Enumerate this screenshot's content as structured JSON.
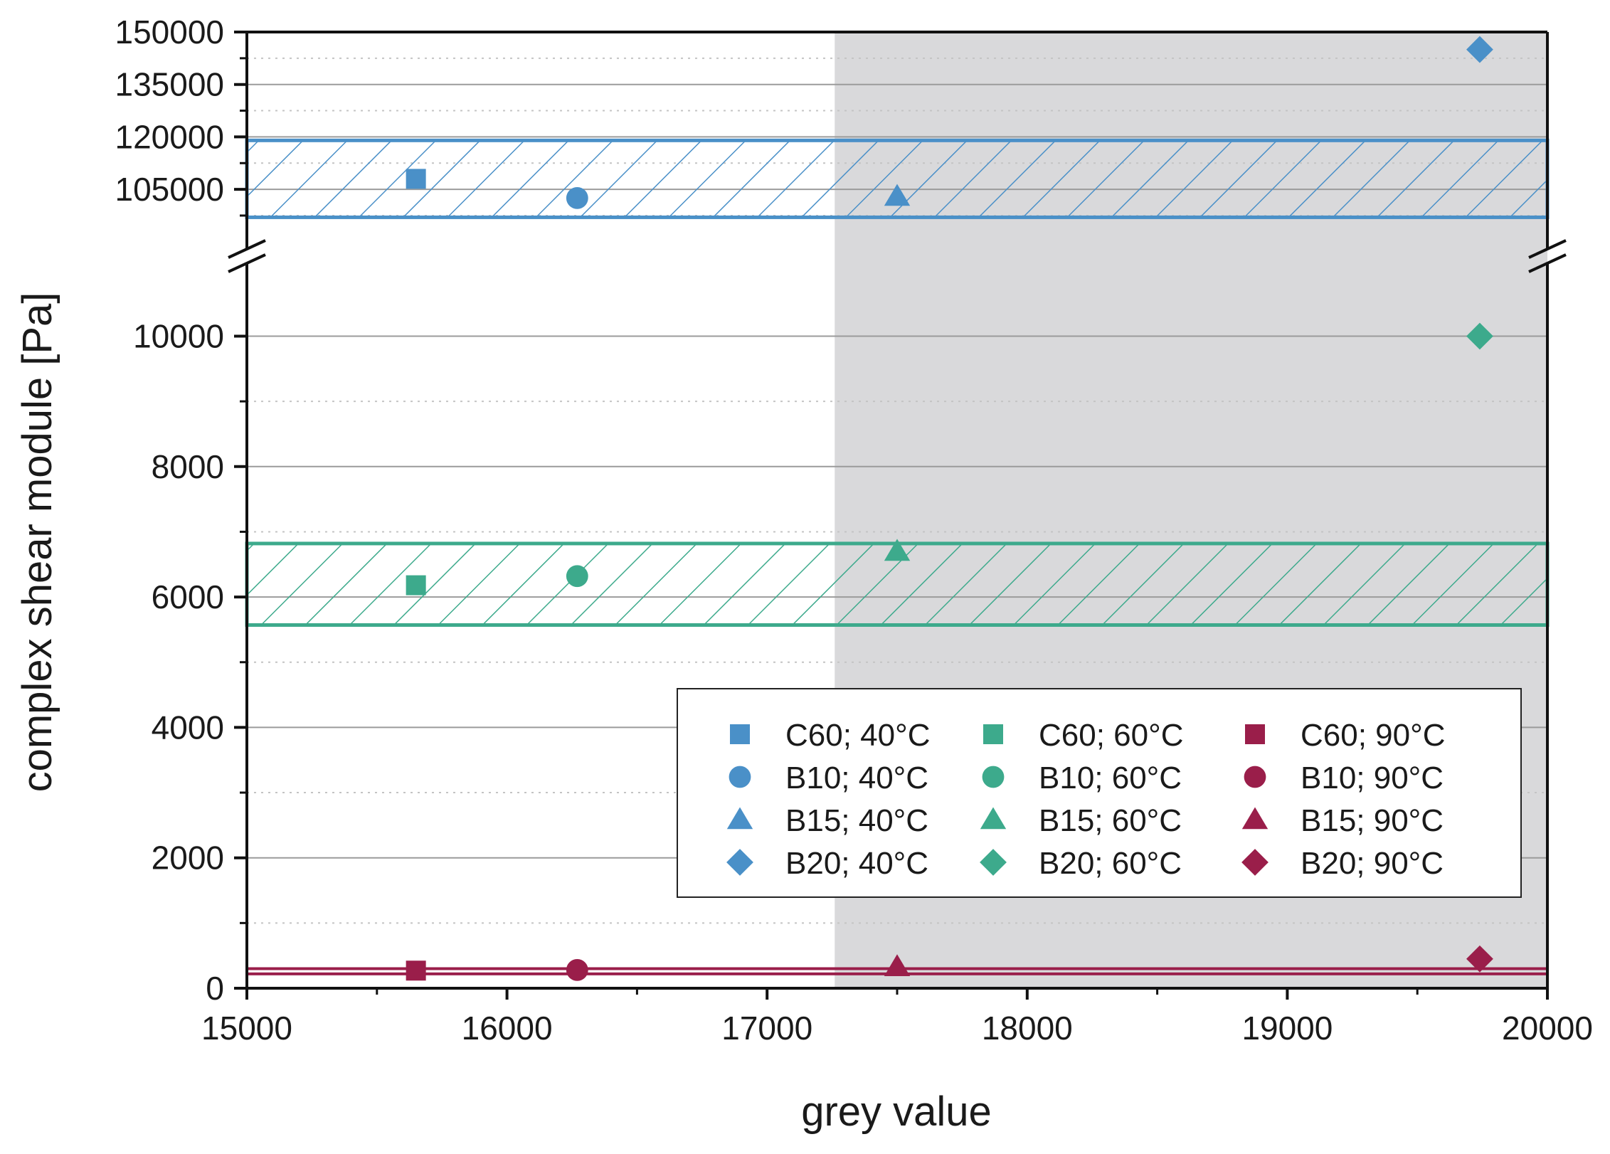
{
  "chart_data": {
    "type": "scatter",
    "title": "",
    "xlabel": "grey value",
    "ylabel": "complex shear module [Pa]",
    "xlim": [
      15000,
      20000
    ],
    "x_ticks": [
      15000,
      16000,
      17000,
      18000,
      19000,
      20000
    ],
    "x_tick_labels": [
      "15000",
      "16000",
      "17000",
      "18000",
      "19000",
      "20000"
    ],
    "y_axis_break": true,
    "y_lower_range": [
      0,
      10900
    ],
    "y_upper_range": [
      92000,
      150000
    ],
    "y_ticks_lower": [
      0,
      2000,
      4000,
      6000,
      8000,
      10000
    ],
    "y_tick_labels_lower": [
      "0",
      "2000",
      "4000",
      "6000",
      "8000",
      "10000"
    ],
    "y_ticks_upper": [
      105000,
      120000,
      135000,
      150000
    ],
    "y_tick_labels_upper": [
      "105000",
      "120000",
      "135000",
      "150000"
    ],
    "grid": true,
    "shaded_region": {
      "x_from": 17260,
      "x_to": 20000,
      "color": "#d9d9db"
    },
    "colors": {
      "c40": "#4a90c8",
      "c60": "#3daa8c",
      "c90": "#9a1e4a"
    },
    "bands": [
      {
        "name": "40°C band",
        "y_min": 97000,
        "y_max": 119000,
        "color": "#4a90c8",
        "hatched": true
      },
      {
        "name": "60°C band",
        "y_min": 5570,
        "y_max": 6820,
        "color": "#3daa8c",
        "hatched": true
      },
      {
        "name": "90°C band",
        "y_min": 220,
        "y_max": 300,
        "color": "#9a1e4a",
        "hatched": false
      }
    ],
    "series": [
      {
        "name": "C60; 40°C",
        "marker": "square",
        "color": "#4a90c8",
        "x": 15650,
        "y": 108000
      },
      {
        "name": "B10; 40°C",
        "marker": "circle",
        "color": "#4a90c8",
        "x": 16270,
        "y": 102500
      },
      {
        "name": "B15; 40°C",
        "marker": "triangle",
        "color": "#4a90c8",
        "x": 17500,
        "y": 103000
      },
      {
        "name": "B20; 40°C",
        "marker": "diamond",
        "color": "#4a90c8",
        "x": 19740,
        "y": 145000
      },
      {
        "name": "C60; 60°C",
        "marker": "square",
        "color": "#3daa8c",
        "x": 15650,
        "y": 6180
      },
      {
        "name": "B10; 60°C",
        "marker": "circle",
        "color": "#3daa8c",
        "x": 16270,
        "y": 6320
      },
      {
        "name": "B15; 60°C",
        "marker": "triangle",
        "color": "#3daa8c",
        "x": 17500,
        "y": 6700
      },
      {
        "name": "B20; 60°C",
        "marker": "diamond",
        "color": "#3daa8c",
        "x": 19740,
        "y": 10000
      },
      {
        "name": "C60; 90°C",
        "marker": "square",
        "color": "#9a1e4a",
        "x": 15650,
        "y": 270
      },
      {
        "name": "B10; 90°C",
        "marker": "circle",
        "color": "#9a1e4a",
        "x": 16270,
        "y": 280
      },
      {
        "name": "B15; 90°C",
        "marker": "triangle",
        "color": "#9a1e4a",
        "x": 17500,
        "y": 330
      },
      {
        "name": "B20; 90°C",
        "marker": "diamond",
        "color": "#9a1e4a",
        "x": 19740,
        "y": 450
      }
    ],
    "legend": {
      "position": "lower-right",
      "columns": [
        [
          "C60; 40°C",
          "B10; 40°C",
          "B15; 40°C",
          "B20; 40°C"
        ],
        [
          "C60; 60°C",
          "B10; 60°C",
          "B15; 60°C",
          "B20; 60°C"
        ],
        [
          "C60; 90°C",
          "B10; 90°C",
          "B15; 90°C",
          "B20; 90°C"
        ]
      ]
    }
  }
}
